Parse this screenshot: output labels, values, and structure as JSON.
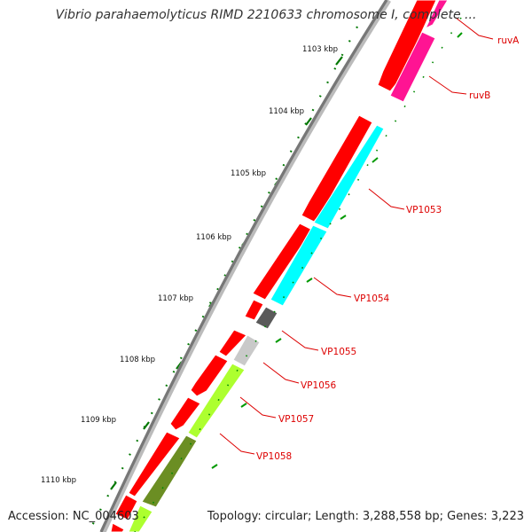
{
  "title": "Vibrio parahaemolyticus RIMD 2210633 chromosome I, complete ...",
  "footer": {
    "accession": "Accession: NC_004603",
    "summary": "Topology: circular; Length: 3,288,558 bp; Genes: 3,223"
  },
  "scale_ticks": [
    {
      "label": "1103 kbp"
    },
    {
      "label": "1104 kbp"
    },
    {
      "label": "1105 kbp"
    },
    {
      "label": "1106 kbp"
    },
    {
      "label": "1107 kbp"
    },
    {
      "label": "1108 kbp"
    },
    {
      "label": "1109 kbp"
    },
    {
      "label": "1110 kbp"
    }
  ],
  "gene_labels": [
    "ruvA",
    "ruvB",
    "VP1053",
    "VP1054",
    "VP1055",
    "VP1056",
    "VP1057",
    "VP1058"
  ],
  "colors": {
    "backbone": "#888888",
    "forward_cds": "#ff0000",
    "ruvA": "#ff1493",
    "ruvB": "#ff1493",
    "VP1053": "#00ffff",
    "VP1054": "#00ffff",
    "VP1055": "#555555",
    "VP1056": "#c8c8c8",
    "VP1057": "#adff2f",
    "VP1058": "#6b8e23",
    "label": "#dd0000",
    "tick": "#006400"
  }
}
